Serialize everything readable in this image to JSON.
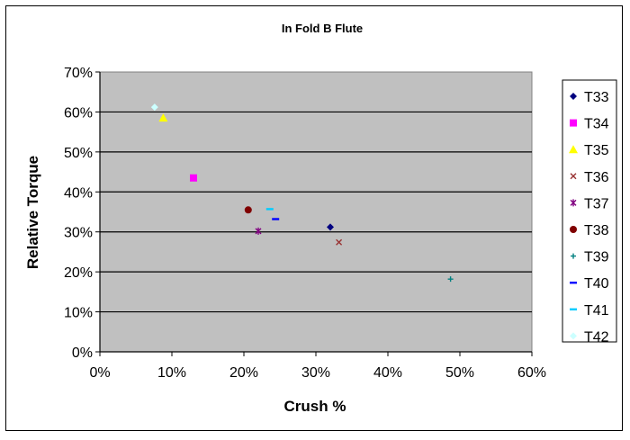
{
  "chart_data": {
    "type": "scatter",
    "title": "In Fold B Flute",
    "xlabel": "Crush %",
    "ylabel": "Relative Torque",
    "xlim": [
      0,
      60
    ],
    "ylim": [
      0,
      70
    ],
    "x_ticks": [
      "0%",
      "10%",
      "20%",
      "30%",
      "40%",
      "50%",
      "60%"
    ],
    "y_ticks": [
      "0%",
      "10%",
      "20%",
      "30%",
      "40%",
      "50%",
      "60%",
      "70%"
    ],
    "plot_background": "#c0c0c0",
    "grid": "horizontal",
    "legend_position": "right",
    "series": [
      {
        "name": "T33",
        "marker": "diamond",
        "color": "#000080",
        "points": [
          [
            32.0,
            31.2
          ]
        ]
      },
      {
        "name": "T34",
        "marker": "square",
        "color": "#ff00ff",
        "points": [
          [
            13.0,
            43.5
          ]
        ]
      },
      {
        "name": "T35",
        "marker": "triangle",
        "color": "#ffff00",
        "points": [
          [
            8.8,
            58.5
          ]
        ]
      },
      {
        "name": "T36",
        "marker": "x",
        "color": "#993333",
        "points": [
          [
            33.2,
            27.4
          ]
        ]
      },
      {
        "name": "T37",
        "marker": "star",
        "color": "#800080",
        "points": [
          [
            22.0,
            30.2
          ]
        ]
      },
      {
        "name": "T38",
        "marker": "circle",
        "color": "#800000",
        "points": [
          [
            20.6,
            35.5
          ]
        ]
      },
      {
        "name": "T39",
        "marker": "plus",
        "color": "#008080",
        "points": [
          [
            48.7,
            18.2
          ]
        ]
      },
      {
        "name": "T40",
        "marker": "dash",
        "color": "#0000ff",
        "points": [
          [
            24.4,
            33.2
          ]
        ]
      },
      {
        "name": "T41",
        "marker": "dash",
        "color": "#00ccff",
        "points": [
          [
            23.6,
            35.7
          ]
        ]
      },
      {
        "name": "T42",
        "marker": "diamond",
        "color": "#ccffff",
        "points": [
          [
            7.6,
            61.2
          ]
        ]
      }
    ]
  }
}
